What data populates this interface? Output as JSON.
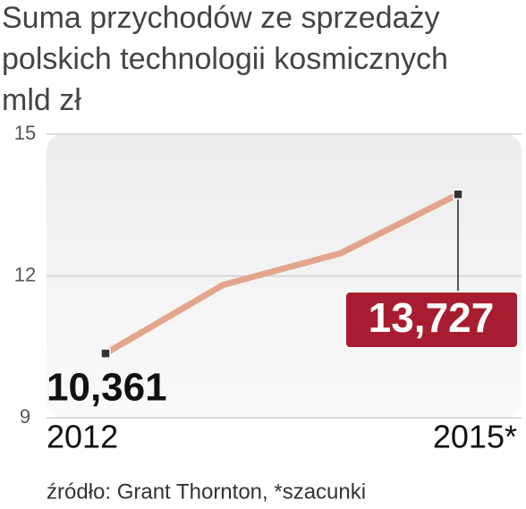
{
  "chart_data": {
    "type": "line",
    "title": "Suma przychodów ze sprzedaży",
    "subtitle": "polskich technologii kosmicznych",
    "y_label": "mld zł",
    "categories": [
      "2012",
      null,
      null,
      "2015*"
    ],
    "values": [
      10.361,
      11.81,
      12.48,
      13.727
    ],
    "value_labels": [
      "10,361",
      null,
      null,
      "13,727"
    ],
    "color": "#e2a58b",
    "ylim": [
      9,
      15
    ],
    "yticks": [
      9,
      12,
      15
    ],
    "grid": true,
    "source": "źródło: Grant Thornton, *szacunki"
  }
}
